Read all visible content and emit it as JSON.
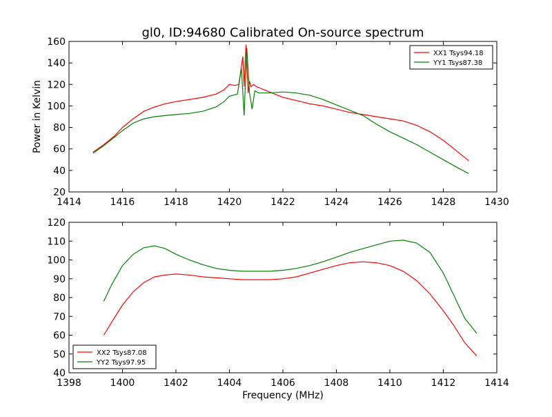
{
  "title": "gl0, ID:94680 Calibrated On-source spectrum",
  "chart_data": [
    {
      "type": "line",
      "ylabel": "Power in Kelvin",
      "xlabel": "",
      "xlim": [
        1414,
        1430
      ],
      "ylim": [
        20,
        160
      ],
      "xticks": [
        "1414",
        "1416",
        "1418",
        "1420",
        "1422",
        "1424",
        "1426",
        "1428",
        "1430"
      ],
      "yticks": [
        "20",
        "40",
        "60",
        "80",
        "100",
        "120",
        "140",
        "160"
      ],
      "legend_position": "top-right",
      "series": [
        {
          "name": "XX1 Tsys94.18",
          "color": "#ff0000",
          "x": [
            1414.9,
            1415.3,
            1415.7,
            1416.0,
            1416.4,
            1416.8,
            1417.2,
            1417.6,
            1418.0,
            1418.5,
            1419.0,
            1419.5,
            1419.8,
            1420.0,
            1420.2,
            1420.35,
            1420.5,
            1420.55,
            1420.62,
            1420.7,
            1420.75,
            1420.8,
            1420.9,
            1421.0,
            1421.2,
            1421.5,
            1422.0,
            1422.5,
            1423.0,
            1423.5,
            1424.0,
            1424.5,
            1425.0,
            1425.5,
            1426.0,
            1426.5,
            1427.0,
            1427.5,
            1428.0,
            1428.5,
            1428.95
          ],
          "values": [
            57,
            64,
            72,
            80,
            88,
            95,
            99,
            102,
            104,
            106,
            108,
            111,
            115,
            120,
            119,
            120,
            146,
            118,
            157,
            112,
            123,
            118,
            120,
            118,
            116,
            113,
            108,
            105,
            102,
            100,
            97,
            94,
            92,
            90,
            88,
            86,
            82,
            76,
            68,
            58,
            49
          ]
        },
        {
          "name": "YY1 Tsys87.38",
          "color": "#008000",
          "x": [
            1414.9,
            1415.3,
            1415.7,
            1416.0,
            1416.4,
            1416.8,
            1417.2,
            1417.6,
            1418.0,
            1418.5,
            1419.0,
            1419.5,
            1419.8,
            1420.0,
            1420.3,
            1420.45,
            1420.55,
            1420.65,
            1420.75,
            1420.85,
            1420.95,
            1421.1,
            1421.5,
            1422.0,
            1422.5,
            1423.0,
            1423.5,
            1424.0,
            1424.5,
            1425.0,
            1425.5,
            1426.0,
            1426.5,
            1427.0,
            1427.5,
            1428.0,
            1428.5,
            1428.95
          ],
          "values": [
            56,
            63,
            71,
            77,
            84,
            88,
            90,
            91,
            92,
            93,
            95,
            99,
            104,
            109,
            111,
            135,
            91,
            154,
            112,
            97,
            114,
            112,
            112,
            113,
            112,
            110,
            106,
            101,
            96,
            91,
            83,
            76,
            70,
            64,
            57,
            50,
            43,
            37
          ]
        }
      ]
    },
    {
      "type": "line",
      "ylabel": "",
      "xlabel": "Frequency (MHz)",
      "xlim": [
        1398,
        1414
      ],
      "ylim": [
        40,
        120
      ],
      "xticks": [
        "1398",
        "1400",
        "1402",
        "1404",
        "1406",
        "1408",
        "1410",
        "1412",
        "1414"
      ],
      "yticks": [
        "40",
        "50",
        "60",
        "70",
        "80",
        "90",
        "100",
        "110",
        "120"
      ],
      "legend_position": "bottom-left",
      "series": [
        {
          "name": "XX2 Tsys87.08",
          "color": "#ff0000",
          "x": [
            1399.3,
            1399.6,
            1400.0,
            1400.4,
            1400.8,
            1401.2,
            1401.6,
            1402.0,
            1402.5,
            1403.0,
            1403.5,
            1404.0,
            1404.5,
            1405.0,
            1405.5,
            1406.0,
            1406.5,
            1407.0,
            1407.5,
            1408.0,
            1408.5,
            1409.0,
            1409.5,
            1410.0,
            1410.5,
            1411.0,
            1411.5,
            1412.0,
            1412.4,
            1412.8,
            1413.25
          ],
          "values": [
            60,
            67,
            76,
            83,
            88,
            91,
            92,
            92.5,
            92,
            91,
            90.5,
            90,
            89.5,
            89.5,
            89.5,
            90,
            91,
            93,
            95,
            97,
            98.5,
            99,
            98.5,
            97,
            94,
            89,
            82,
            73,
            65,
            56,
            49
          ]
        },
        {
          "name": "YY2 Tsys97.95",
          "color": "#008000",
          "x": [
            1399.3,
            1399.6,
            1400.0,
            1400.4,
            1400.8,
            1401.2,
            1401.6,
            1402.0,
            1402.5,
            1403.0,
            1403.5,
            1404.0,
            1404.5,
            1405.0,
            1405.5,
            1406.0,
            1406.5,
            1407.0,
            1407.5,
            1408.0,
            1408.5,
            1409.0,
            1409.5,
            1410.0,
            1410.5,
            1411.0,
            1411.5,
            1412.0,
            1412.4,
            1412.8,
            1413.25
          ],
          "values": [
            78,
            87,
            97,
            103,
            106.5,
            107.5,
            106,
            103,
            100,
            97.5,
            95.5,
            94.5,
            94,
            94,
            94,
            94.5,
            95.5,
            97,
            99,
            101.5,
            104,
            106,
            108,
            110,
            110.5,
            109,
            104,
            93,
            81,
            69,
            61
          ]
        }
      ]
    }
  ]
}
